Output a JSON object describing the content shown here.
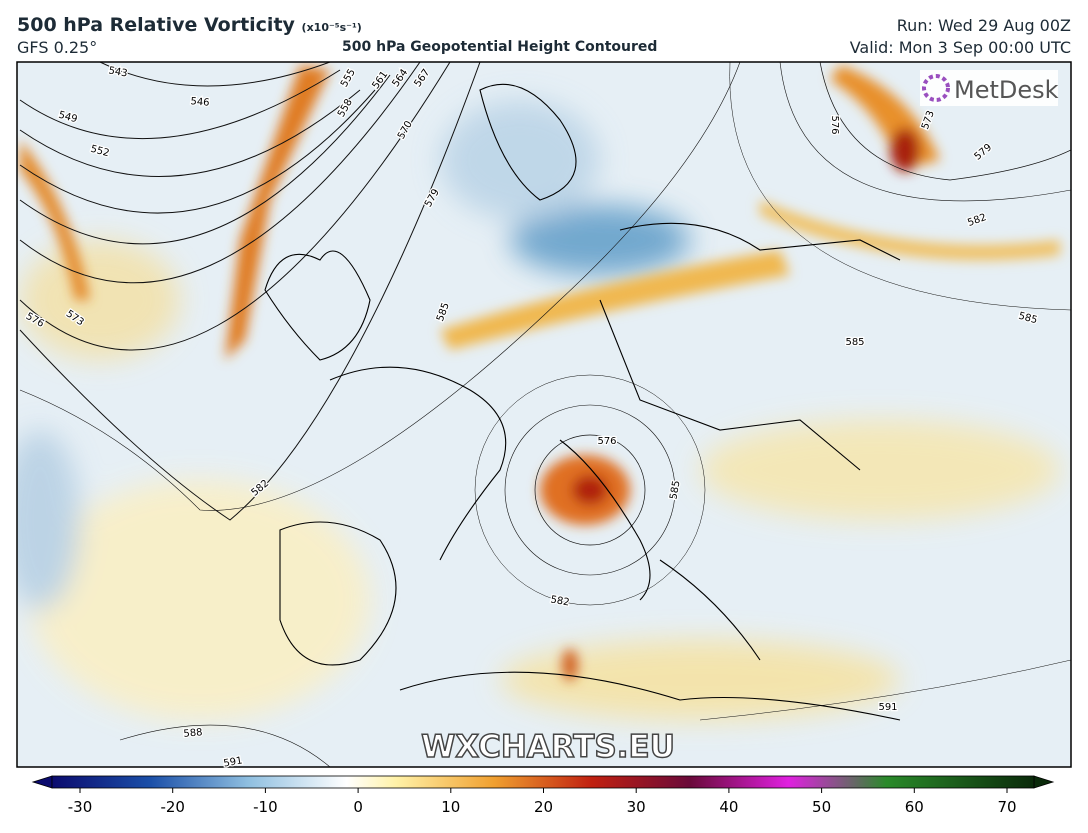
{
  "header": {
    "title": "500 hPa Relative Vorticity",
    "units": "(x10⁻⁵s⁻¹)",
    "model": "GFS 0.25°",
    "subtitle": "500 hPa Geopotential Height Contoured",
    "run": "Run: Wed 29 Aug 00Z",
    "valid": "Valid: Mon 3 Sep 00:00 UTC"
  },
  "map": {
    "logo": "MetDesk",
    "watermark": "WXCHARTS.EU",
    "contour_labels": [
      543,
      546,
      549,
      552,
      555,
      558,
      561,
      564,
      567,
      570,
      573,
      576,
      579,
      582,
      585,
      576,
      585,
      582,
      588,
      591,
      591,
      576,
      573,
      579,
      582,
      585,
      585
    ]
  },
  "colorbar": {
    "ticks": [
      -30,
      -20,
      -10,
      0,
      10,
      20,
      30,
      40,
      50,
      60,
      70
    ]
  }
}
